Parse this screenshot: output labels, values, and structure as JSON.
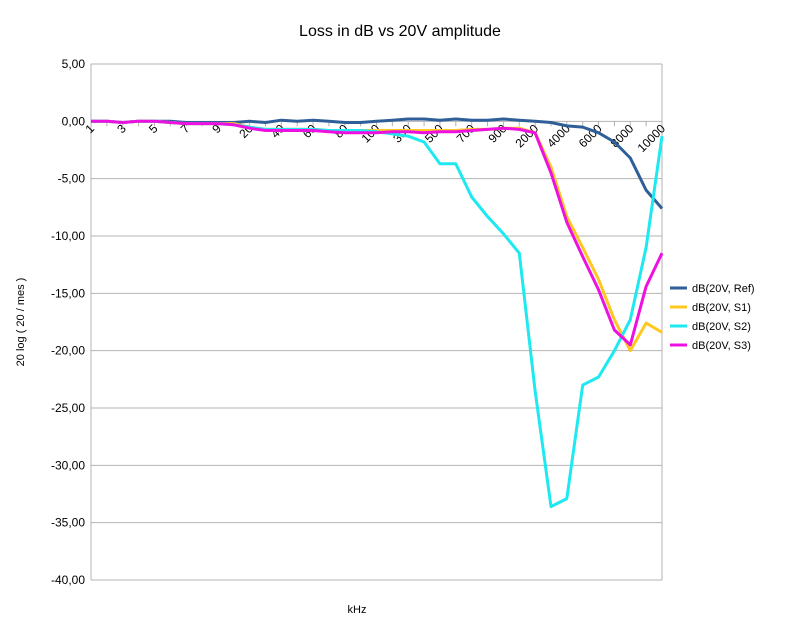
{
  "chart_data": {
    "type": "line",
    "title": "Loss in dB vs 20V amplitude",
    "xlabel": "kHz",
    "ylabel": "20 log ( 20 / mes )",
    "ylim": [
      -40,
      5
    ],
    "y_ticks": [
      "5,00",
      "0,00",
      "-5,00",
      "-10,00",
      "-15,00",
      "-20,00",
      "-25,00",
      "-30,00",
      "-35,00",
      "-40,00"
    ],
    "grid": true,
    "legend_position": "right",
    "categories": [
      "1",
      "2",
      "3",
      "4",
      "5",
      "6",
      "7",
      "8",
      "9",
      "10",
      "20",
      "30",
      "40",
      "50",
      "60",
      "70",
      "80",
      "90",
      "100",
      "200",
      "300",
      "400",
      "500",
      "600",
      "700",
      "800",
      "900",
      "1000",
      "2000",
      "3000",
      "4000",
      "5000",
      "6000",
      "7000",
      "8000",
      "9000",
      "10000"
    ],
    "x_tick_labels": [
      "1",
      "3",
      "5",
      "7",
      "9",
      "20",
      "40",
      "60",
      "80",
      "100",
      "300",
      "500",
      "700",
      "900",
      "2000",
      "4000",
      "6000",
      "8000",
      "10000"
    ],
    "series": [
      {
        "name": "dB(20V, Ref)",
        "color": "#2f5f98",
        "values": [
          0,
          0,
          -0.1,
          0,
          0,
          0,
          -0.1,
          -0.1,
          -0.1,
          -0.1,
          0,
          -0.1,
          0.1,
          0,
          0.1,
          0,
          -0.1,
          -0.1,
          0,
          0.1,
          0.2,
          0.2,
          0.1,
          0.2,
          0.1,
          0.1,
          0.2,
          0.1,
          0,
          -0.1,
          -0.4,
          -0.5,
          -1.0,
          -1.8,
          -3.2,
          -6.0,
          -7.6
        ]
      },
      {
        "name": "dB(20V, S1)",
        "color": "#ffc820",
        "values": [
          0,
          0,
          -0.1,
          0,
          0,
          -0.1,
          -0.2,
          -0.2,
          -0.2,
          -0.2,
          -0.5,
          -0.7,
          -0.7,
          -0.7,
          -0.7,
          -0.8,
          -0.8,
          -0.8,
          -0.8,
          -0.8,
          -0.8,
          -0.8,
          -0.8,
          -0.8,
          -0.7,
          -0.7,
          -0.6,
          -0.6,
          -1.0,
          -4.0,
          -8.3,
          -11.0,
          -13.8,
          -17.3,
          -20.0,
          -17.6,
          -18.4
        ]
      },
      {
        "name": "dB(20V, S2)",
        "color": "#1ee8f0",
        "values": [
          0,
          0,
          -0.1,
          0,
          0,
          -0.1,
          -0.2,
          -0.2,
          -0.2,
          -0.3,
          -0.5,
          -0.7,
          -0.7,
          -0.7,
          -0.7,
          -0.8,
          -0.8,
          -0.8,
          -0.9,
          -1.1,
          -1.3,
          -1.8,
          -3.7,
          -3.7,
          -6.6,
          -8.3,
          -9.8,
          -11.5,
          -23.5,
          -33.6,
          -32.9,
          -23.0,
          -22.3,
          -20.0,
          -17.3,
          -11.0,
          -1.3
        ]
      },
      {
        "name": "dB(20V, S3)",
        "color": "#ee10e0",
        "values": [
          0,
          0,
          -0.1,
          0,
          0,
          -0.1,
          -0.2,
          -0.2,
          -0.2,
          -0.3,
          -0.6,
          -0.8,
          -0.8,
          -0.8,
          -0.8,
          -0.9,
          -1.0,
          -1.0,
          -1.0,
          -0.9,
          -0.9,
          -1.0,
          -0.9,
          -0.9,
          -0.8,
          -0.7,
          -0.6,
          -0.7,
          -1.0,
          -4.5,
          -8.8,
          -11.8,
          -14.7,
          -18.2,
          -19.5,
          -14.4,
          -11.5
        ]
      }
    ]
  }
}
